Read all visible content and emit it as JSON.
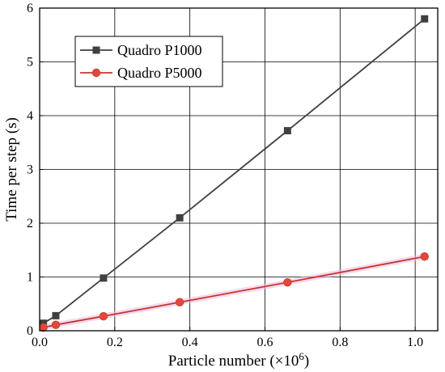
{
  "chart_data": {
    "type": "line",
    "title": "",
    "xlabel": "Particle number (×10",
    "xlabel_exp": "6",
    "xlabel_close": ")",
    "ylabel": "Time per step (s)",
    "xlim": [
      0,
      1.06
    ],
    "ylim": [
      0,
      6
    ],
    "xticks": [
      0.0,
      0.2,
      0.4,
      0.6,
      0.8,
      1.0
    ],
    "xtick_labels": [
      "0.0",
      "0.2",
      "0.4",
      "0.6",
      "0.8",
      "1.0"
    ],
    "yticks": [
      0,
      1,
      2,
      3,
      4,
      5,
      6
    ],
    "ytick_labels": [
      "0",
      "1",
      "2",
      "3",
      "4",
      "5",
      "6"
    ],
    "grid": true,
    "legend_position": "top-left",
    "series": [
      {
        "name": "Quadro P1000",
        "color": "#404040",
        "marker": "square",
        "x": [
          0.01,
          0.043,
          0.17,
          0.373,
          0.66,
          1.025
        ],
        "y": [
          0.14,
          0.28,
          0.98,
          2.1,
          3.72,
          5.8
        ]
      },
      {
        "name": "Quadro P5000",
        "color": "#c0392b",
        "marker_fill": "#e8453c",
        "marker": "circle",
        "x": [
          0.01,
          0.043,
          0.17,
          0.373,
          0.66,
          1.025
        ],
        "y": [
          0.06,
          0.11,
          0.27,
          0.53,
          0.9,
          1.38
        ]
      }
    ]
  }
}
